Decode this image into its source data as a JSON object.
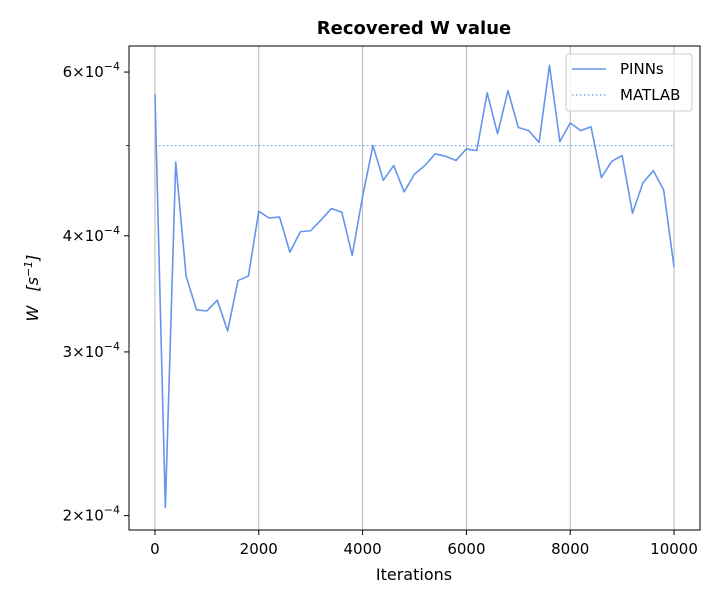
{
  "chart_data": {
    "type": "line",
    "title": "Recovered W value",
    "xlabel": "Iterations",
    "ylabel": "W",
    "ylabel_unit": "[s^-1]",
    "xlim": [
      -500,
      10500
    ],
    "ylim": [
      0.000193,
      0.00064
    ],
    "yscale": "log",
    "grid": "x-major",
    "legend_position": "top-right",
    "x_ticks": [
      {
        "value": 0,
        "label": "0"
      },
      {
        "value": 2000,
        "label": "2000"
      },
      {
        "value": 4000,
        "label": "4000"
      },
      {
        "value": 6000,
        "label": "6000"
      },
      {
        "value": 8000,
        "label": "8000"
      },
      {
        "value": 10000,
        "label": "10000"
      }
    ],
    "y_major_ticks": [
      {
        "value": 0.0002,
        "mantissa": "2",
        "exponent": "−4"
      },
      {
        "value": 0.0003,
        "mantissa": "3",
        "exponent": "−4"
      },
      {
        "value": 0.0004,
        "mantissa": "4",
        "exponent": "−4"
      },
      {
        "value": 0.0006,
        "mantissa": "6",
        "exponent": "−4"
      }
    ],
    "y_minor_ticks": [
      0.0005
    ],
    "series": [
      {
        "name": "PINNs",
        "style": "solid",
        "color": "#6495ed",
        "x": [
          0,
          200,
          400,
          600,
          800,
          1000,
          1200,
          1400,
          1600,
          1800,
          2000,
          2200,
          2400,
          2600,
          2800,
          3000,
          3200,
          3400,
          3600,
          3800,
          4000,
          4200,
          4400,
          4600,
          4800,
          5000,
          5200,
          5400,
          5600,
          5800,
          6000,
          6200,
          6400,
          6600,
          6800,
          7000,
          7200,
          7400,
          7600,
          7800,
          8000,
          8200,
          8400,
          8600,
          8800,
          9000,
          9200,
          9400,
          9600,
          9800,
          10000
        ],
        "values": [
          0.000568,
          0.000204,
          0.00048,
          0.000362,
          0.000333,
          0.000332,
          0.000341,
          0.000316,
          0.000358,
          0.000362,
          0.000425,
          0.000418,
          0.000419,
          0.000384,
          0.000404,
          0.000405,
          0.000416,
          0.000428,
          0.000424,
          0.000381,
          0.000441,
          0.0005,
          0.000459,
          0.000476,
          0.000446,
          0.000466,
          0.000476,
          0.00049,
          0.000487,
          0.000482,
          0.000496,
          0.000494,
          0.00057,
          0.000515,
          0.000573,
          0.000523,
          0.000519,
          0.000504,
          0.00061,
          0.000505,
          0.000529,
          0.000519,
          0.000524,
          0.000462,
          0.000481,
          0.000488,
          0.000423,
          0.000456,
          0.00047,
          0.000448,
          0.00037
        ]
      },
      {
        "name": "MATLAB",
        "style": "dotted",
        "color": "#6495ed",
        "x": [
          0,
          10000
        ],
        "values": [
          0.0005,
          0.0005
        ]
      }
    ]
  }
}
